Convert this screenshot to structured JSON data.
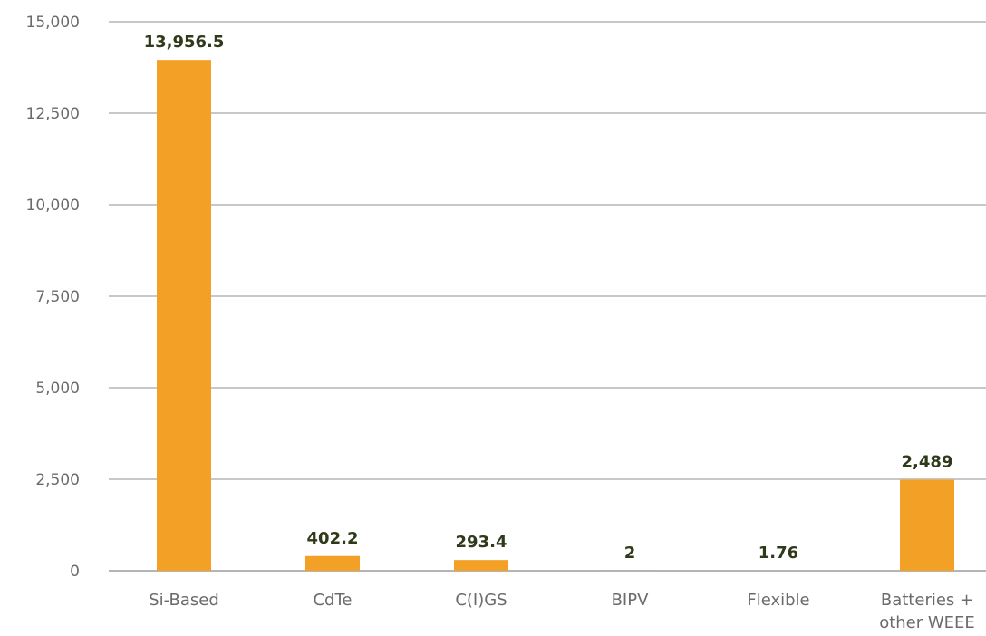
{
  "chart_data": {
    "type": "bar",
    "categories": [
      [
        "Si-Based"
      ],
      [
        "CdTe"
      ],
      [
        "C(I)GS"
      ],
      [
        "BIPV"
      ],
      [
        "Flexible"
      ],
      [
        "Batteries +",
        "other WEEE"
      ]
    ],
    "values": [
      13956.5,
      402.2,
      293.4,
      2,
      1.76,
      2489
    ],
    "data_labels": [
      "13,956.5",
      "402.2",
      "293.4",
      "2",
      "1.76",
      "2,489"
    ],
    "ylim": [
      0,
      15000
    ],
    "yticks": [
      0,
      2500,
      5000,
      7500,
      10000,
      12500,
      15000
    ],
    "ytick_labels": [
      "0",
      "2,500",
      "5,000",
      "7,500",
      "10,000",
      "12,500",
      "15,000"
    ],
    "grid": true,
    "bar_color": "#f2a126",
    "title": "",
    "xlabel": "",
    "ylabel": ""
  }
}
